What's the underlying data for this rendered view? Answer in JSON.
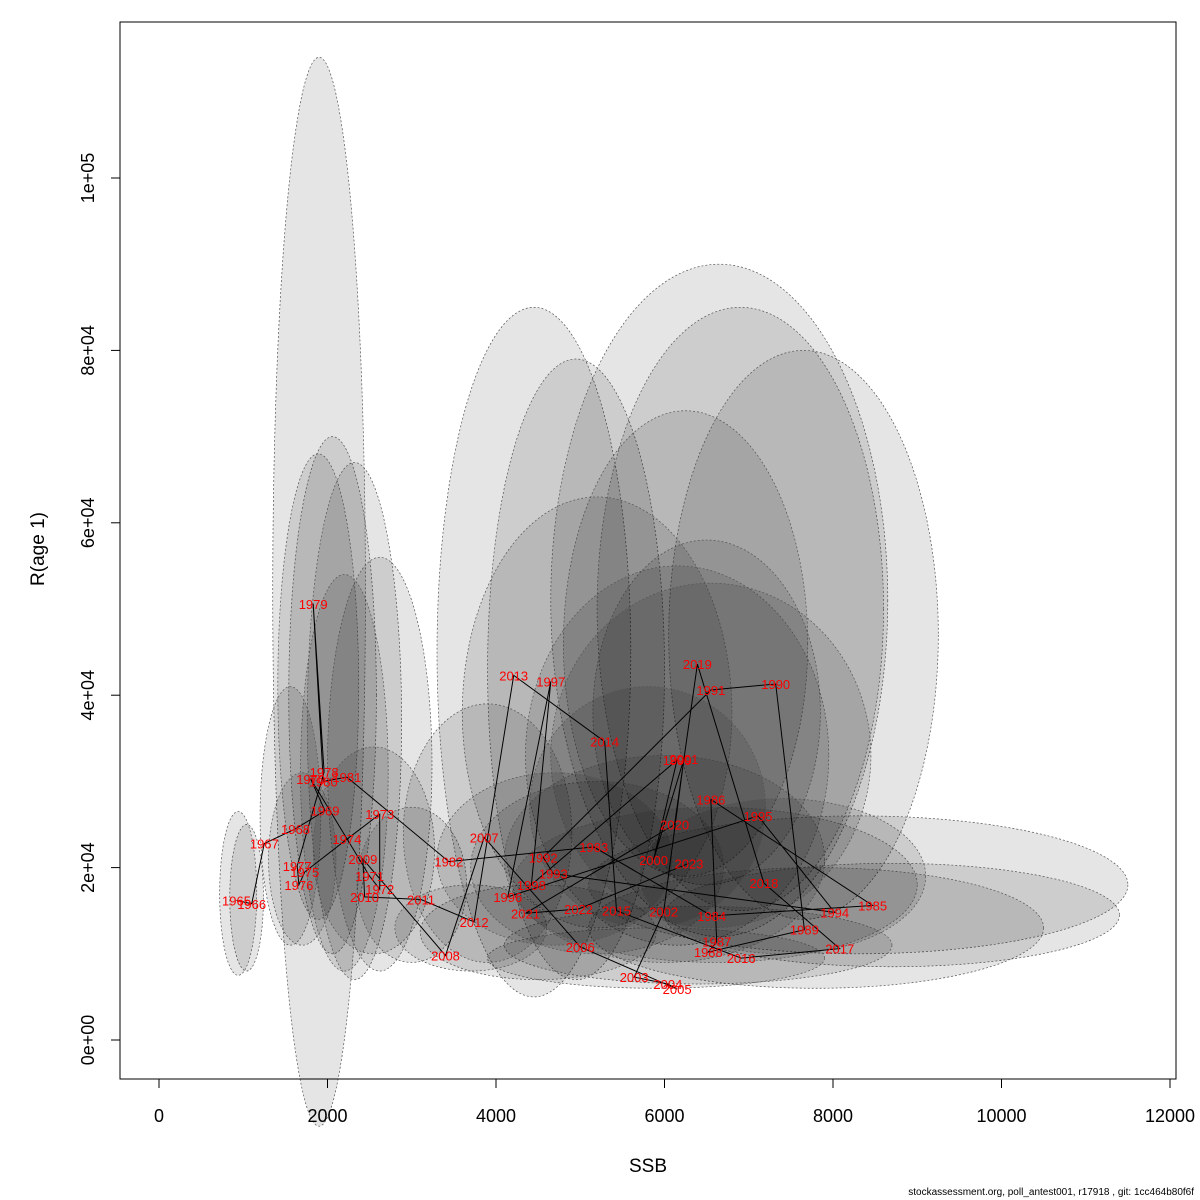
{
  "chart_data": {
    "type": "scatter",
    "title": "",
    "xlabel": "SSB",
    "ylabel": "R(age 1)",
    "xlim": [
      -500,
      12000
    ],
    "ylim": [
      -4500,
      118000
    ],
    "x_ticks": [
      {
        "v": 0,
        "label": "0"
      },
      {
        "v": 2000,
        "label": "2000"
      },
      {
        "v": 4000,
        "label": "4000"
      },
      {
        "v": 6000,
        "label": "6000"
      },
      {
        "v": 8000,
        "label": "8000"
      },
      {
        "v": 10000,
        "label": "10000"
      },
      {
        "v": 12000,
        "label": "12000"
      }
    ],
    "y_ticks": [
      {
        "v": 0,
        "label": "0e+00"
      },
      {
        "v": 20000,
        "label": "2e+04"
      },
      {
        "v": 40000,
        "label": "4e+04"
      },
      {
        "v": 60000,
        "label": "6e+04"
      },
      {
        "v": 80000,
        "label": "8e+04"
      },
      {
        "v": 100000,
        "label": "1e+05"
      }
    ],
    "points": [
      {
        "year": "1965",
        "ssb": 920,
        "r": 16200
      },
      {
        "year": "1966",
        "ssb": 1100,
        "r": 15800
      },
      {
        "year": "1967",
        "ssb": 1250,
        "r": 22800
      },
      {
        "year": "1968",
        "ssb": 1620,
        "r": 24500
      },
      {
        "year": "1969",
        "ssb": 1970,
        "r": 26600
      },
      {
        "year": "1970",
        "ssb": 1800,
        "r": 30300
      },
      {
        "year": "1971",
        "ssb": 2500,
        "r": 19000
      },
      {
        "year": "1972",
        "ssb": 2620,
        "r": 17500
      },
      {
        "year": "1973",
        "ssb": 2620,
        "r": 26200
      },
      {
        "year": "1974",
        "ssb": 2230,
        "r": 23300
      },
      {
        "year": "1975",
        "ssb": 1730,
        "r": 19500
      },
      {
        "year": "1976",
        "ssb": 1660,
        "r": 18000
      },
      {
        "year": "1977",
        "ssb": 1640,
        "r": 20200
      },
      {
        "year": "1978",
        "ssb": 1960,
        "r": 31100
      },
      {
        "year": "1979",
        "ssb": 1830,
        "r": 50600
      },
      {
        "year": "1980",
        "ssb": 1950,
        "r": 30000
      },
      {
        "year": "1981",
        "ssb": 2230,
        "r": 30500
      },
      {
        "year": "1982",
        "ssb": 3440,
        "r": 20700
      },
      {
        "year": "1983",
        "ssb": 5160,
        "r": 22400
      },
      {
        "year": "1984",
        "ssb": 6560,
        "r": 14400
      },
      {
        "year": "1985",
        "ssb": 8470,
        "r": 15600
      },
      {
        "year": "1986",
        "ssb": 6550,
        "r": 27900
      },
      {
        "year": "1987",
        "ssb": 6620,
        "r": 11400
      },
      {
        "year": "1988",
        "ssb": 6520,
        "r": 10200
      },
      {
        "year": "1989",
        "ssb": 7660,
        "r": 12800
      },
      {
        "year": "1990",
        "ssb": 7320,
        "r": 41300
      },
      {
        "year": "1991",
        "ssb": 6550,
        "r": 40600
      },
      {
        "year": "1992",
        "ssb": 4560,
        "r": 21200
      },
      {
        "year": "1993",
        "ssb": 4680,
        "r": 19300
      },
      {
        "year": "1994",
        "ssb": 8020,
        "r": 14800
      },
      {
        "year": "1995",
        "ssb": 7110,
        "r": 26000
      },
      {
        "year": "1996",
        "ssb": 4140,
        "r": 16600
      },
      {
        "year": "1997",
        "ssb": 4650,
        "r": 41600
      },
      {
        "year": "1998",
        "ssb": 4420,
        "r": 18000
      },
      {
        "year": "1999",
        "ssb": 6150,
        "r": 32500
      },
      {
        "year": "2000",
        "ssb": 5870,
        "r": 20900
      },
      {
        "year": "2001",
        "ssb": 6230,
        "r": 32600
      },
      {
        "year": "2002",
        "ssb": 5990,
        "r": 14900
      },
      {
        "year": "2003",
        "ssb": 5640,
        "r": 7300
      },
      {
        "year": "2004",
        "ssb": 6040,
        "r": 6500
      },
      {
        "year": "2005",
        "ssb": 6150,
        "r": 5900
      },
      {
        "year": "2006",
        "ssb": 5000,
        "r": 10800
      },
      {
        "year": "2007",
        "ssb": 3860,
        "r": 23500
      },
      {
        "year": "2008",
        "ssb": 3400,
        "r": 9800
      },
      {
        "year": "2009",
        "ssb": 2420,
        "r": 21000
      },
      {
        "year": "2010",
        "ssb": 2440,
        "r": 16600
      },
      {
        "year": "2011",
        "ssb": 3110,
        "r": 16300
      },
      {
        "year": "2012",
        "ssb": 3740,
        "r": 13700
      },
      {
        "year": "2013",
        "ssb": 4210,
        "r": 42300
      },
      {
        "year": "2014",
        "ssb": 5290,
        "r": 34600
      },
      {
        "year": "2015",
        "ssb": 5430,
        "r": 15000
      },
      {
        "year": "2016",
        "ssb": 6910,
        "r": 9500
      },
      {
        "year": "2017",
        "ssb": 8080,
        "r": 10600
      },
      {
        "year": "2018",
        "ssb": 7180,
        "r": 18200
      },
      {
        "year": "2019",
        "ssb": 6390,
        "r": 43600
      },
      {
        "year": "2020",
        "ssb": 6120,
        "r": 25000
      },
      {
        "year": "2021",
        "ssb": 4350,
        "r": 14700
      },
      {
        "year": "2022",
        "ssb": 4980,
        "r": 15200
      },
      {
        "year": "2023",
        "ssb": 6290,
        "r": 20500
      }
    ],
    "confidence_ellipses": [
      {
        "cx": 1900,
        "cy": 52000,
        "rx": 550,
        "ry": 62000
      },
      {
        "cx": 2060,
        "cy": 40000,
        "rx": 520,
        "ry": 30000
      },
      {
        "cx": 1890,
        "cy": 41000,
        "rx": 480,
        "ry": 27000
      },
      {
        "cx": 2320,
        "cy": 37000,
        "rx": 560,
        "ry": 30000
      },
      {
        "cx": 2620,
        "cy": 32000,
        "rx": 620,
        "ry": 24000
      },
      {
        "cx": 2200,
        "cy": 31000,
        "rx": 520,
        "ry": 23000
      },
      {
        "cx": 1560,
        "cy": 26000,
        "rx": 360,
        "ry": 15000
      },
      {
        "cx": 1040,
        "cy": 16500,
        "rx": 200,
        "ry": 8500
      },
      {
        "cx": 940,
        "cy": 17000,
        "rx": 220,
        "ry": 9500
      },
      {
        "cx": 1700,
        "cy": 21000,
        "rx": 400,
        "ry": 10000
      },
      {
        "cx": 2550,
        "cy": 22000,
        "rx": 720,
        "ry": 12000
      },
      {
        "cx": 3000,
        "cy": 18000,
        "rx": 650,
        "ry": 9000
      },
      {
        "cx": 4450,
        "cy": 45000,
        "rx": 1150,
        "ry": 40000
      },
      {
        "cx": 4950,
        "cy": 43000,
        "rx": 1050,
        "ry": 36000
      },
      {
        "cx": 6650,
        "cy": 51000,
        "rx": 2000,
        "ry": 39000
      },
      {
        "cx": 6900,
        "cy": 50000,
        "rx": 1700,
        "ry": 35000
      },
      {
        "cx": 7650,
        "cy": 47000,
        "rx": 1600,
        "ry": 33000
      },
      {
        "cx": 6250,
        "cy": 46000,
        "rx": 1450,
        "ry": 27000
      },
      {
        "cx": 6500,
        "cy": 38000,
        "rx": 1350,
        "ry": 20000
      },
      {
        "cx": 5200,
        "cy": 38000,
        "rx": 1600,
        "ry": 25000
      },
      {
        "cx": 6150,
        "cy": 33000,
        "rx": 1800,
        "ry": 22000
      },
      {
        "cx": 8300,
        "cy": 18000,
        "rx": 3200,
        "ry": 8000
      },
      {
        "cx": 8700,
        "cy": 14500,
        "rx": 2700,
        "ry": 6000
      },
      {
        "cx": 7800,
        "cy": 13000,
        "rx": 2700,
        "ry": 7000
      },
      {
        "cx": 6400,
        "cy": 11000,
        "rx": 2300,
        "ry": 4500
      },
      {
        "cx": 5900,
        "cy": 9500,
        "rx": 2000,
        "ry": 3500
      },
      {
        "cx": 4500,
        "cy": 12500,
        "rx": 1400,
        "ry": 5500
      },
      {
        "cx": 3700,
        "cy": 13000,
        "rx": 900,
        "ry": 5000
      },
      {
        "cx": 3900,
        "cy": 24000,
        "rx": 1000,
        "ry": 15000
      },
      {
        "cx": 5200,
        "cy": 20000,
        "rx": 1500,
        "ry": 10000
      },
      {
        "cx": 6000,
        "cy": 21000,
        "rx": 1900,
        "ry": 12000
      },
      {
        "cx": 6600,
        "cy": 18000,
        "rx": 2400,
        "ry": 9000
      },
      {
        "cx": 6550,
        "cy": 33000,
        "rx": 1900,
        "ry": 20000
      },
      {
        "cx": 5800,
        "cy": 27000,
        "rx": 1400,
        "ry": 14000
      },
      {
        "cx": 4700,
        "cy": 21000,
        "rx": 1400,
        "ry": 10000
      },
      {
        "cx": 7400,
        "cy": 19000,
        "rx": 1700,
        "ry": 9000
      }
    ]
  },
  "footer": {
    "text": "stockassessment.org, poll_antest001, r17918 , git: 1cc464b80f6f"
  }
}
